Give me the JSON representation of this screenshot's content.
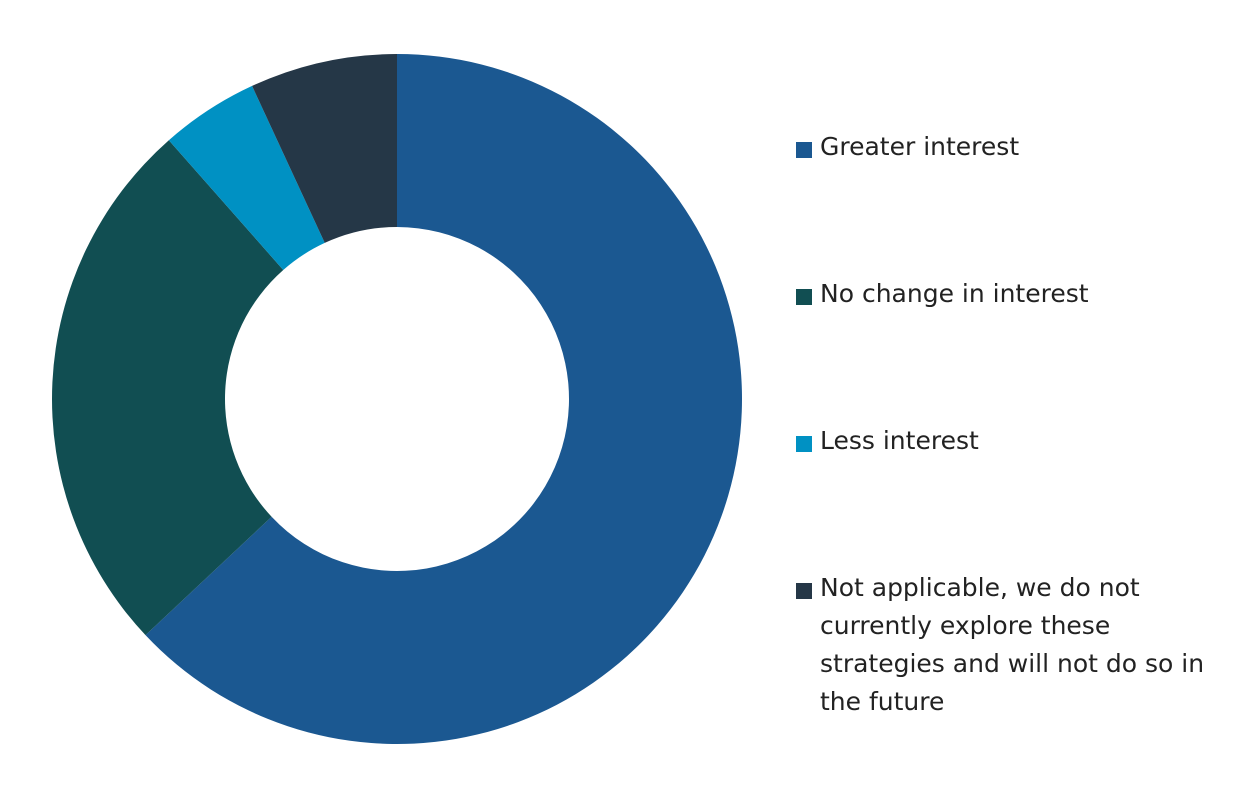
{
  "chart_data": {
    "type": "donut",
    "categories": [
      "Greater interest",
      "No change in interest",
      "Less interest",
      "Not applicable, we do not currently explore these strategies and will not do so in the future"
    ],
    "values": [
      63,
      25.5,
      4.6,
      6.9
    ],
    "colors": [
      "#1b5891",
      "#114e52",
      "#0091c3",
      "#253747"
    ],
    "legend": "right"
  }
}
